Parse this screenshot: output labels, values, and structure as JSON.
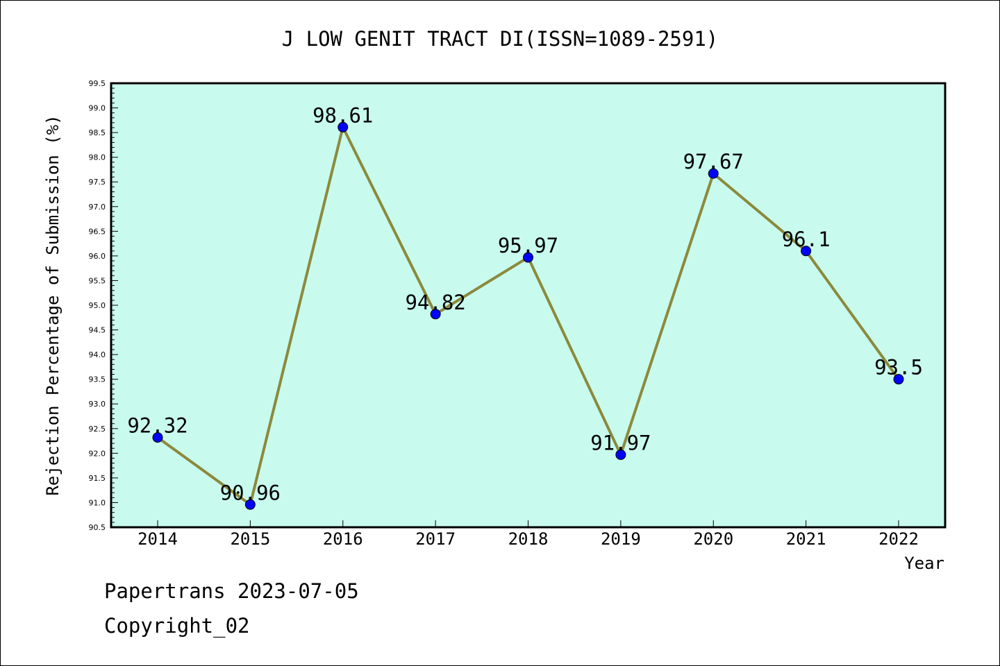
{
  "chart_data": {
    "type": "line",
    "title": "J LOW GENIT TRACT DI(ISSN=1089-2591)",
    "xlabel": "Year",
    "ylabel": "Rejection Percentage of Submission (%)",
    "categories": [
      "2014",
      "2015",
      "2016",
      "2017",
      "2018",
      "2019",
      "2020",
      "2021",
      "2022"
    ],
    "series": [
      {
        "values": [
          92.32,
          90.96,
          98.61,
          94.82,
          95.97,
          91.97,
          97.67,
          96.1,
          93.5
        ],
        "labels": [
          "92.32",
          "90.96",
          "98.61",
          "94.82",
          "95.97",
          "91.97",
          "97.67",
          "96.1",
          "93.5"
        ]
      }
    ],
    "ylim": [
      90.5,
      99.5
    ],
    "y_ticks": [
      "90.5",
      "91.0",
      "91.5",
      "92.0",
      "92.5",
      "93.0",
      "93.5",
      "94.0",
      "94.5",
      "95.0",
      "95.5",
      "96.0",
      "96.5",
      "97.0",
      "97.5",
      "98.0",
      "98.5",
      "99.0",
      "99.5"
    ],
    "grid": false,
    "legend": "none",
    "colors": {
      "plot_background": "#c8fbee",
      "line": "#8b8a3c",
      "marker": "#0000ff"
    }
  },
  "footer": {
    "line1": "Papertrans 2023-07-05",
    "line2": "Copyright_02"
  }
}
